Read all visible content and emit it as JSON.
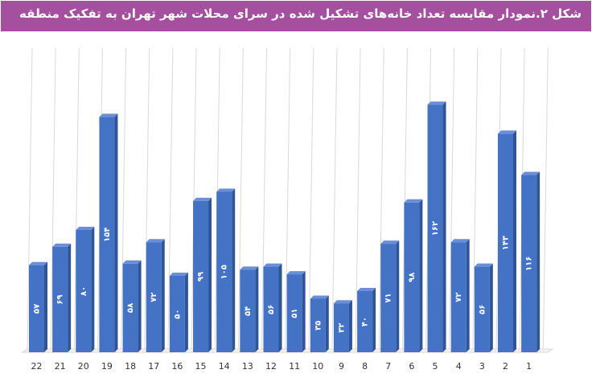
{
  "chart_data": {
    "type": "bar",
    "title": "شکل ۲.نمودار مقایسه تعداد خانه‌های تشکیل شده در سرای محلات شهر تهران به تفکیک منطقه",
    "categories": [
      "22",
      "21",
      "20",
      "19",
      "18",
      "17",
      "16",
      "15",
      "14",
      "13",
      "12",
      "11",
      "10",
      "9",
      "8",
      "7",
      "6",
      "5",
      "4",
      "3",
      "2",
      "1"
    ],
    "values": [
      57,
      69,
      80,
      154,
      58,
      72,
      50,
      99,
      105,
      54,
      56,
      51,
      35,
      32,
      40,
      71,
      98,
      162,
      72,
      56,
      143,
      116
    ],
    "data_labels": [
      "۵۷",
      "۶۹",
      "۸۰",
      "۱۵۴",
      "۵۸",
      "۷۲",
      "۵۰",
      "۹۹",
      "۱۰۵",
      "۵۴",
      "۵۶",
      "۵۱",
      "۳۵",
      "۳۲",
      "۴۰",
      "۷۱",
      "۹۸",
      "۱۶۲",
      "۷۲",
      "۵۶",
      "۱۴۳",
      "۱۱۶"
    ],
    "xlabel": "",
    "ylabel": "",
    "ylim": [
      0,
      180
    ],
    "grid": true,
    "legend": "none",
    "colors": {
      "front": "#4472c4",
      "side": "#2f5597",
      "top": "#6b8fd6",
      "title_bg": "#a4509f",
      "grid": "#d9d9d9"
    }
  }
}
